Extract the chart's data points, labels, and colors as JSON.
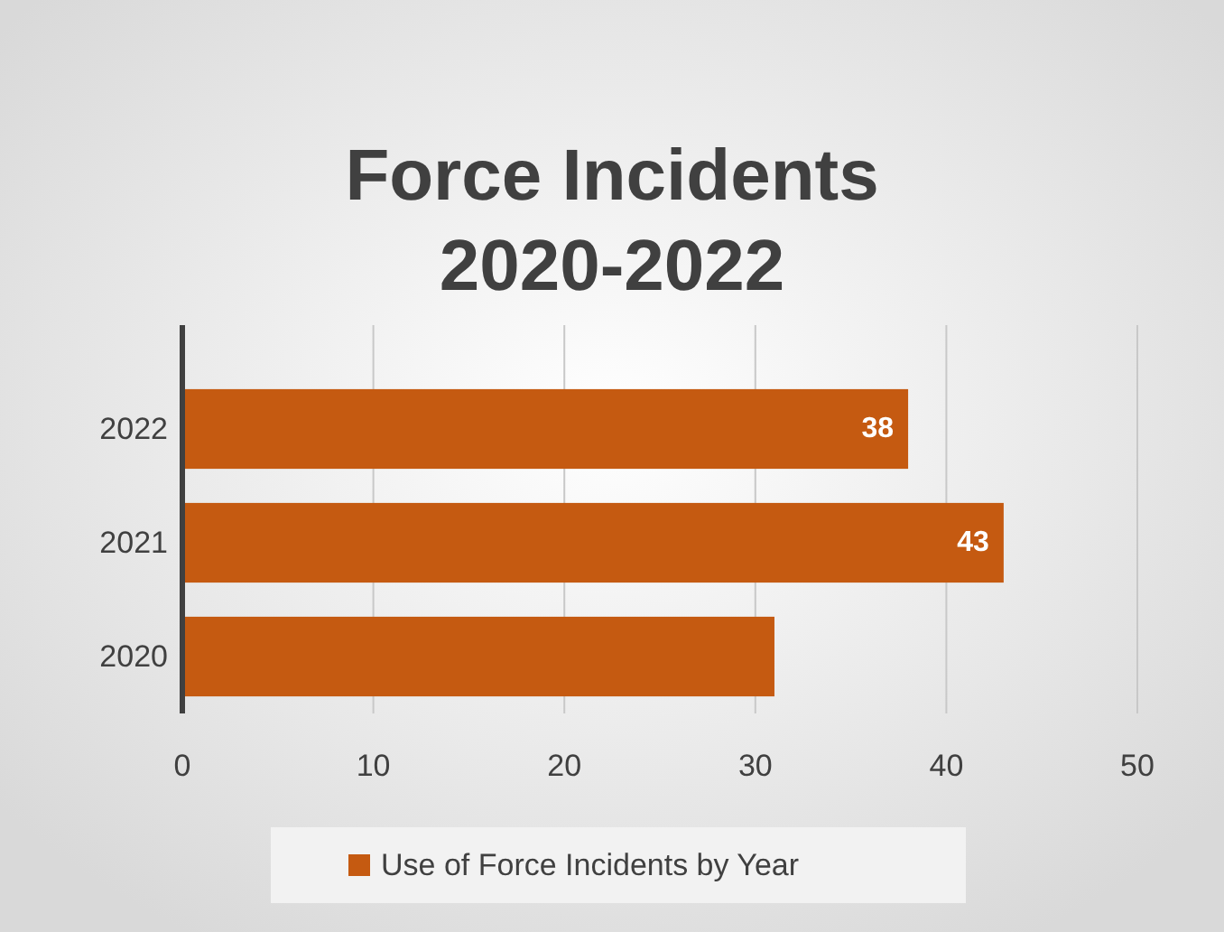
{
  "chart_data": {
    "type": "bar",
    "orientation": "horizontal",
    "title": "Force Incidents 2020-2022",
    "categories": [
      "2022",
      "2021",
      "2020"
    ],
    "series": [
      {
        "name": "Use of Force Incidents by Year",
        "color": "#c55a11",
        "values": [
          38,
          43,
          31
        ]
      }
    ],
    "value_labels": [
      "38",
      "43",
      null
    ],
    "xlim": [
      0,
      50
    ],
    "xticks": [
      0,
      10,
      20,
      30,
      40,
      50
    ],
    "grid": "x",
    "legend": "bottom"
  }
}
